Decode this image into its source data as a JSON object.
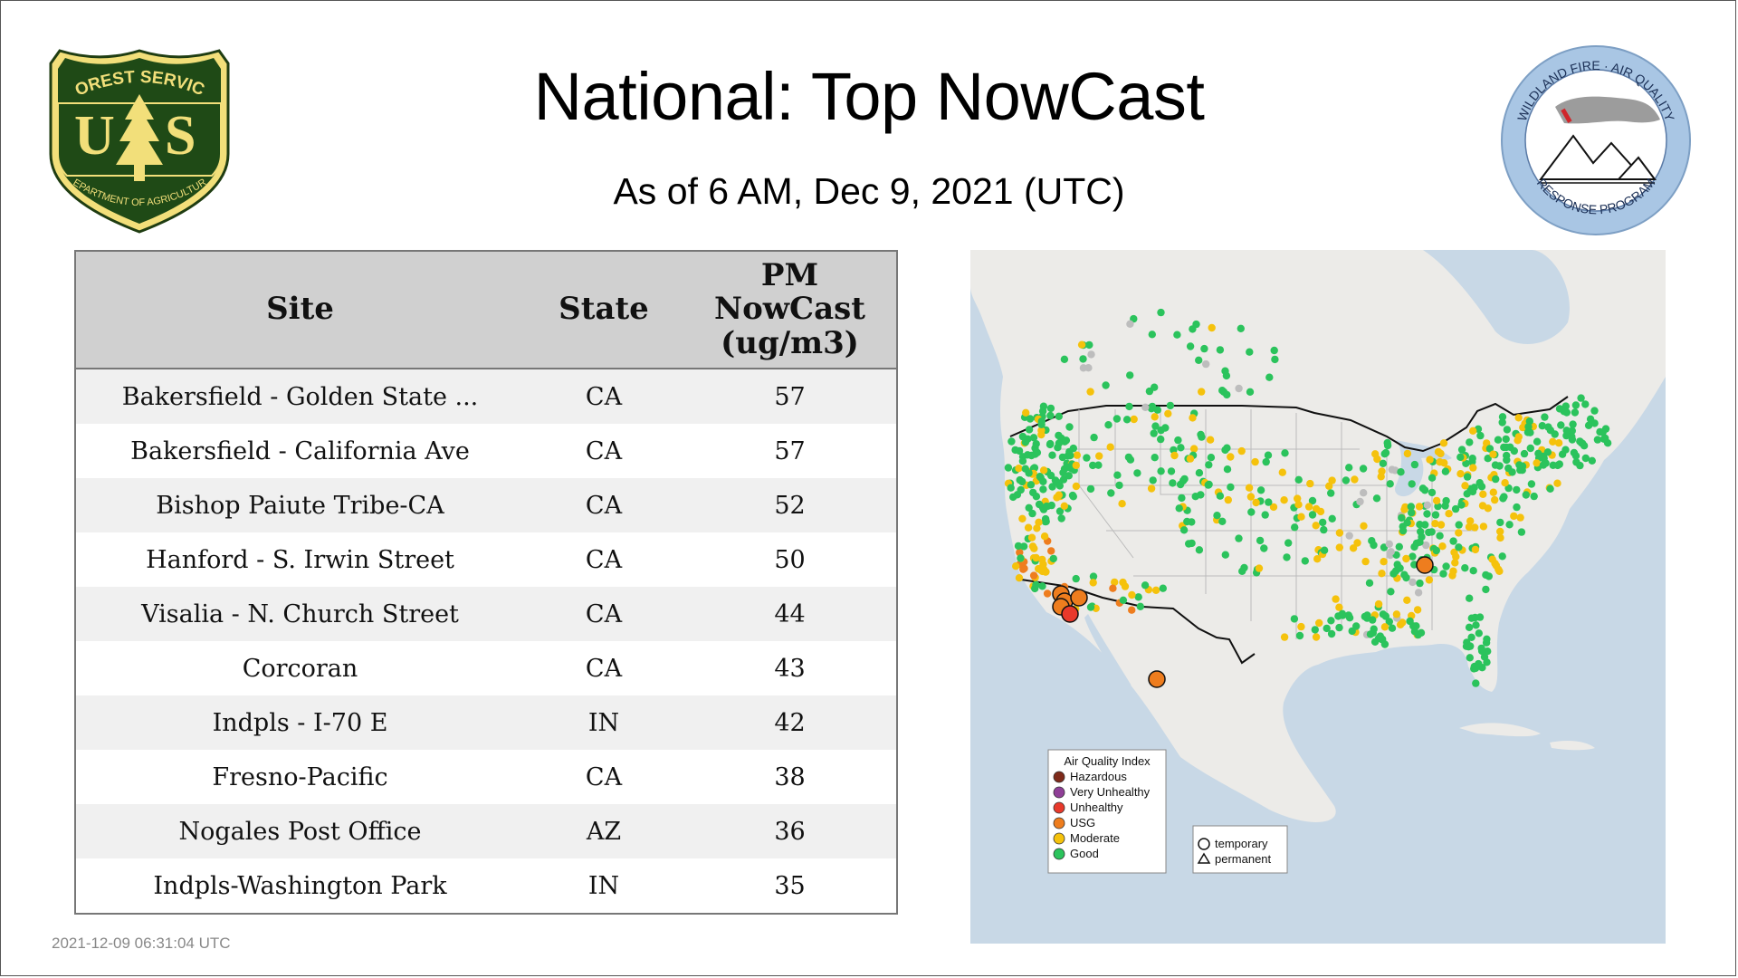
{
  "header": {
    "title": "National: Top NowCast",
    "subtitle": "As of  6 AM, Dec  9, 2021 (UTC)"
  },
  "logos": {
    "forest_service": {
      "icon": "forest-service-shield-icon",
      "top_text": "FOREST SERVICE",
      "letters": "U S",
      "bottom_text": "DEPARTMENT OF AGRICULTURE"
    },
    "wildland_fire": {
      "icon": "wildland-fire-air-quality-seal-icon",
      "top_text": "WILDLAND FIRE · AIR QUALITY",
      "bottom_text": "RESPONSE PROGRAM"
    }
  },
  "table": {
    "headers": {
      "site": "Site",
      "state": "State",
      "pm": "PM\nNowCast\n(ug/m3)"
    },
    "rows": [
      {
        "site": "Bakersfield - Golden State ...",
        "state": "CA",
        "value": "57"
      },
      {
        "site": "Bakersfield - California Ave",
        "state": "CA",
        "value": "57"
      },
      {
        "site": "Bishop Paiute Tribe-CA",
        "state": "CA",
        "value": "52"
      },
      {
        "site": "Hanford - S. Irwin Street",
        "state": "CA",
        "value": "50"
      },
      {
        "site": "Visalia - N. Church Street",
        "state": "CA",
        "value": "44"
      },
      {
        "site": "Corcoran",
        "state": "CA",
        "value": "43"
      },
      {
        "site": "Indpls - I-70 E",
        "state": "IN",
        "value": "42"
      },
      {
        "site": "Fresno-Pacific",
        "state": "CA",
        "value": "38"
      },
      {
        "site": "Nogales Post Office",
        "state": "AZ",
        "value": "36"
      },
      {
        "site": "Indpls-Washington Park",
        "state": "IN",
        "value": "35"
      }
    ]
  },
  "map": {
    "colors": {
      "land": "#ecebe8",
      "water": "#c8d8e6",
      "hazardous": "#7e2a1a",
      "very_unhealthy": "#8f3f97",
      "unhealthy": "#e8392b",
      "usg": "#ee7d1e",
      "moderate": "#f5c20c",
      "good": "#2bc35c",
      "no_data": "#bdbdbd"
    },
    "legend": {
      "title": "Air Quality Index",
      "items": [
        {
          "label": "Hazardous",
          "color": "#7e2a1a"
        },
        {
          "label": "Very Unhealthy",
          "color": "#8f3f97"
        },
        {
          "label": "Unhealthy",
          "color": "#e8392b"
        },
        {
          "label": "USG",
          "color": "#ee7d1e"
        },
        {
          "label": "Moderate",
          "color": "#f5c20c"
        },
        {
          "label": "Good",
          "color": "#2bc35c"
        }
      ],
      "shapes": [
        {
          "label": "temporary",
          "shape": "circle"
        },
        {
          "label": "permanent",
          "shape": "triangle"
        }
      ]
    }
  },
  "footer": {
    "timestamp": "2021-12-09 06:31:04 UTC"
  }
}
